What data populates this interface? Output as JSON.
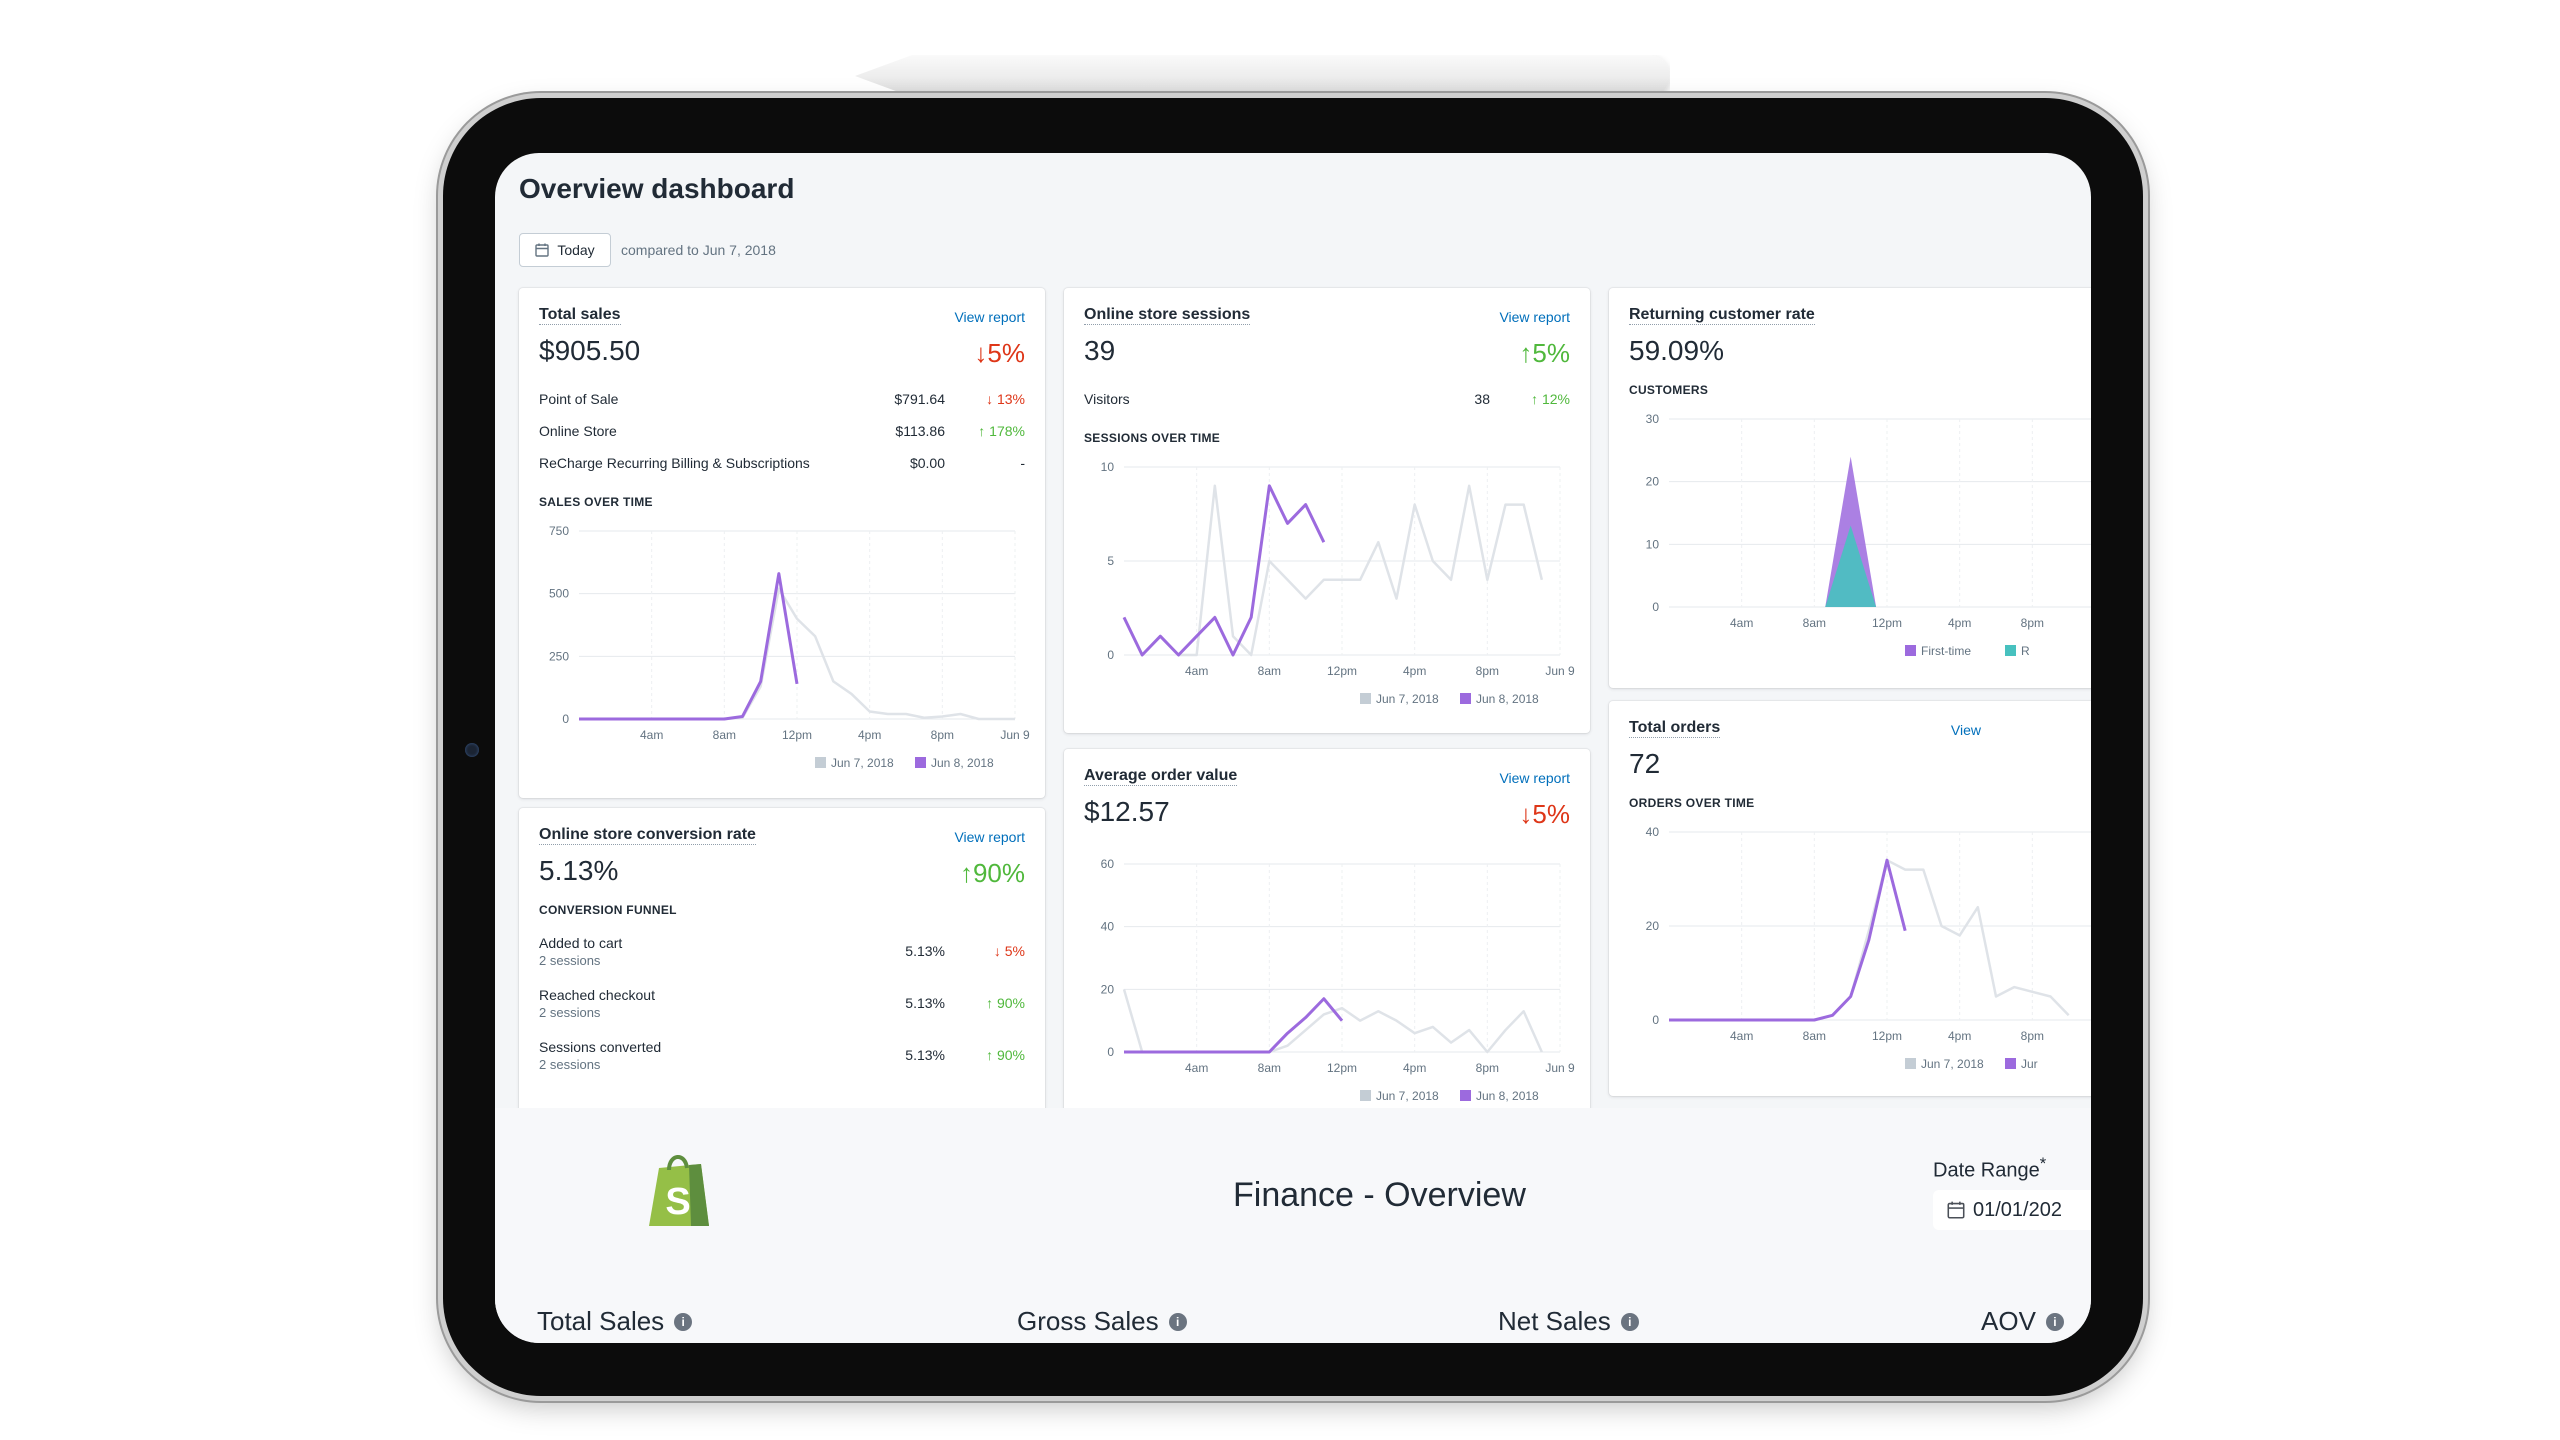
{
  "header": {
    "title": "Overview dashboard",
    "date_button": "Today",
    "compared_text": "compared to Jun 7, 2018"
  },
  "colors": {
    "current": "#9c6ade",
    "previous": "#dfe3e8",
    "returning": "#47c1bf",
    "link": "#006fbb",
    "down": "#de3618",
    "up": "#50b83c"
  },
  "cards": {
    "total_sales": {
      "title": "Total sales",
      "link": "View report",
      "value": "$905.50",
      "change": "↓5%",
      "rows": [
        {
          "name": "Point of Sale",
          "value": "$791.64",
          "change": "↓ 13%"
        },
        {
          "name": "Online Store",
          "value": "$113.86",
          "change": "↑ 178%"
        },
        {
          "name": "ReCharge Recurring Billing & Subscriptions",
          "value": "$0.00",
          "change": "-"
        }
      ],
      "chart_label": "SALES OVER TIME",
      "legend": [
        "Jun 7, 2018",
        "Jun 8, 2018"
      ]
    },
    "sessions": {
      "title": "Online store sessions",
      "link": "View report",
      "value": "39",
      "change": "↑5%",
      "rows": [
        {
          "name": "Visitors",
          "value": "38",
          "change": "↑ 12%"
        }
      ],
      "chart_label": "SESSIONS OVER TIME",
      "legend": [
        "Jun 7, 2018",
        "Jun 8, 2018"
      ]
    },
    "returning": {
      "title": "Returning customer rate",
      "value": "59.09%",
      "chart_label": "CUSTOMERS",
      "legend": [
        "First-time",
        "R"
      ]
    },
    "conversion": {
      "title": "Online store conversion rate",
      "link": "View report",
      "value": "5.13%",
      "change": "↑90%",
      "funnel_label": "CONVERSION FUNNEL",
      "funnel": [
        {
          "name": "Added to cart",
          "sub": "2 sessions",
          "value": "5.13%",
          "change": "↓ 5%"
        },
        {
          "name": "Reached checkout",
          "sub": "2 sessions",
          "value": "5.13%",
          "change": "↑ 90%"
        },
        {
          "name": "Sessions converted",
          "sub": "2 sessions",
          "value": "5.13%",
          "change": "↑ 90%"
        }
      ]
    },
    "aov": {
      "title": "Average order value",
      "link": "View report",
      "value": "$12.57",
      "change": "↓5%",
      "legend": [
        "Jun 7, 2018",
        "Jun 8, 2018"
      ]
    },
    "orders": {
      "title": "Total orders",
      "link": "View",
      "value": "72",
      "chart_label": "ORDERS OVER TIME",
      "legend": [
        "Jun 7, 2018",
        "Jur"
      ]
    }
  },
  "chart_data": [
    {
      "type": "line",
      "name": "sales",
      "x_ticks": [
        "4am",
        "8am",
        "12pm",
        "4pm",
        "8pm",
        "Jun 9"
      ],
      "y_ticks": [
        "750",
        "500",
        "250",
        "0"
      ],
      "ylim": [
        0,
        750
      ],
      "series": [
        {
          "name": "Jun 7, 2018",
          "values": [
            0,
            0,
            0,
            0,
            0,
            0,
            0,
            0,
            0,
            5,
            130,
            520,
            400,
            330,
            150,
            100,
            30,
            20,
            20,
            5,
            10,
            20,
            0,
            0,
            0
          ]
        },
        {
          "name": "Jun 8, 2018",
          "values": [
            0,
            0,
            0,
            0,
            0,
            0,
            0,
            0,
            0,
            10,
            150,
            580,
            140
          ]
        }
      ]
    },
    {
      "type": "line",
      "name": "sessions",
      "x_ticks": [
        "4am",
        "8am",
        "12pm",
        "4pm",
        "8pm",
        "Jun 9"
      ],
      "y_ticks": [
        "10",
        "5",
        "0"
      ],
      "ylim": [
        0,
        10
      ],
      "series": [
        {
          "name": "Jun 7, 2018",
          "values": [
            2,
            0,
            1,
            0,
            0,
            9,
            1,
            0,
            5,
            4,
            3,
            4,
            4,
            4,
            6,
            3,
            8,
            5,
            4,
            9,
            4,
            8,
            8,
            4
          ]
        },
        {
          "name": "Jun 8, 2018",
          "values": [
            2,
            0,
            1,
            0,
            1,
            2,
            0,
            2,
            9,
            7,
            8,
            6
          ]
        }
      ]
    },
    {
      "type": "area",
      "name": "customers",
      "x_ticks": [
        "4am",
        "8am",
        "12pm",
        "4pm",
        "8pm"
      ],
      "y_ticks": [
        "30",
        "20",
        "10",
        "0"
      ],
      "ylim": [
        0,
        30
      ],
      "series": [
        {
          "name": "First-time",
          "values": [
            0,
            0,
            0,
            0,
            0,
            0,
            0,
            0,
            0,
            0,
            13,
            0,
            0,
            0,
            0,
            0,
            0,
            0,
            0,
            0,
            0,
            0,
            0,
            0
          ]
        },
        {
          "name": "R",
          "values": [
            0,
            0,
            0,
            0,
            0,
            0,
            0,
            0,
            0,
            0,
            24,
            0,
            0,
            0,
            0,
            0,
            0,
            0,
            0,
            0,
            0,
            0,
            0,
            0
          ]
        }
      ]
    },
    {
      "type": "line",
      "name": "aov",
      "x_ticks": [
        "4am",
        "8am",
        "12pm",
        "4pm",
        "8pm",
        "Jun 9"
      ],
      "y_ticks": [
        "60",
        "40",
        "20",
        "0"
      ],
      "ylim": [
        0,
        60
      ],
      "series": [
        {
          "name": "Jun 7, 2018",
          "values": [
            20,
            0,
            0,
            0,
            0,
            0,
            0,
            0,
            0,
            2,
            7,
            12,
            14,
            10,
            13,
            10,
            6,
            8,
            3,
            7,
            0,
            7,
            13,
            0
          ]
        },
        {
          "name": "Jun 8, 2018",
          "values": [
            0,
            0,
            0,
            0,
            0,
            0,
            0,
            0,
            0,
            6,
            11,
            17,
            10
          ]
        }
      ]
    },
    {
      "type": "line",
      "name": "orders",
      "x_ticks": [
        "4am",
        "8am",
        "12pm",
        "4pm",
        "8pm"
      ],
      "y_ticks": [
        "40",
        "20",
        "0"
      ],
      "ylim": [
        0,
        40
      ],
      "series": [
        {
          "name": "Jun 7, 2018",
          "values": [
            0,
            0,
            0,
            0,
            0,
            0,
            0,
            0,
            0,
            1,
            5,
            19,
            34,
            32,
            32,
            20,
            18,
            24,
            5,
            7,
            6,
            5,
            1
          ]
        },
        {
          "name": "Jun 8, 2018",
          "values": [
            0,
            0,
            0,
            0,
            0,
            0,
            0,
            0,
            0,
            1,
            5,
            17,
            34,
            19
          ]
        }
      ]
    }
  ],
  "finance": {
    "title": "Finance - Overview",
    "date_range_label": "Date Range",
    "required_marker": "*",
    "date_value": "01/01/202",
    "kpis": [
      "Total Sales",
      "Gross Sales",
      "Net Sales",
      "AOV"
    ],
    "info_glyph": "i",
    "logo_letter": "S"
  }
}
